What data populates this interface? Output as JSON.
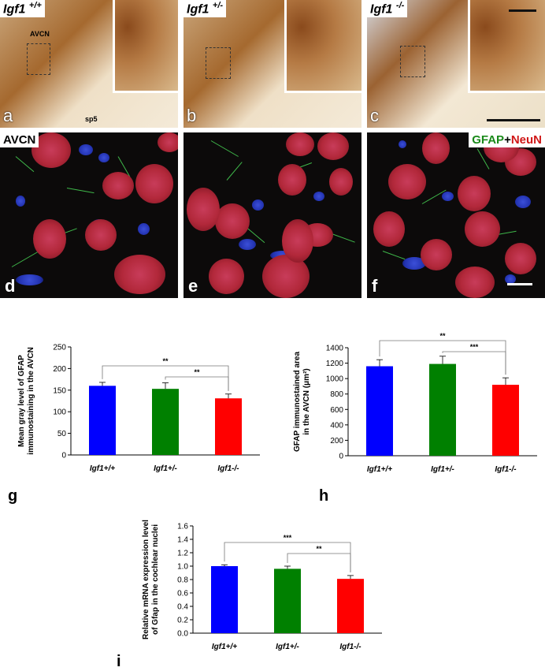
{
  "micrographs": {
    "top": [
      {
        "genotype": "Igf1",
        "superscript": "+/+",
        "letter": "a",
        "labels": [
          "AVCN",
          "sp5"
        ]
      },
      {
        "genotype": "Igf1",
        "superscript": "+/-",
        "letter": "b",
        "labels": []
      },
      {
        "genotype": "Igf1",
        "superscript": "-/-",
        "letter": "c",
        "labels": []
      }
    ],
    "bottom": [
      {
        "letter": "d",
        "label": "AVCN"
      },
      {
        "letter": "e",
        "label": ""
      },
      {
        "letter": "f",
        "stain_gfap": "GFAP",
        "stain_plus": "+",
        "stain_neun": "NeuN"
      }
    ]
  },
  "chart_data": [
    {
      "panel": "g",
      "type": "bar",
      "categories": [
        "Igf1+/+",
        "Igf1+/-",
        "Igf1-/-"
      ],
      "values": [
        160,
        153,
        131
      ],
      "errors": [
        8,
        14,
        10
      ],
      "colors": [
        "#0000ff",
        "#008000",
        "#ff0000"
      ],
      "ylabel": "Mean gray level of GFAP immunostaining in the AVCN",
      "ylabel_lines": [
        "Mean gray level of GFAP",
        "immunostaining in the AVCN"
      ],
      "ylim": [
        0,
        250
      ],
      "yticks": [
        "0",
        "50",
        "100",
        "150",
        "200",
        "250"
      ],
      "tick_values": [
        0,
        50,
        100,
        150,
        200,
        250
      ],
      "significance": [
        {
          "from": 0,
          "to": 2,
          "label": "**"
        },
        {
          "from": 1,
          "to": 2,
          "label": "**"
        }
      ]
    },
    {
      "panel": "h",
      "type": "bar",
      "categories": [
        "Igf1+/+",
        "Igf1+/-",
        "Igf1-/-"
      ],
      "values": [
        1160,
        1190,
        920
      ],
      "errors": [
        85,
        100,
        90
      ],
      "colors": [
        "#0000ff",
        "#008000",
        "#ff0000"
      ],
      "ylabel": "GFAP immunostained area in the AVCN (μm²)",
      "ylabel_lines": [
        "GFAP immunostained area",
        "in the AVCN (μm²)"
      ],
      "ylim": [
        0,
        1400
      ],
      "yticks": [
        "0",
        "200",
        "400",
        "600",
        "800",
        "1000",
        "1200",
        "1400"
      ],
      "tick_values": [
        0,
        200,
        400,
        600,
        800,
        1000,
        1200,
        1400
      ],
      "significance": [
        {
          "from": 0,
          "to": 2,
          "label": "**"
        },
        {
          "from": 1,
          "to": 2,
          "label": "***"
        }
      ]
    },
    {
      "panel": "i",
      "type": "bar",
      "categories": [
        "Igf1+/+",
        "Igf1+/-",
        "Igf1-/-"
      ],
      "values": [
        1.0,
        0.96,
        0.81
      ],
      "errors": [
        0.02,
        0.04,
        0.05
      ],
      "colors": [
        "#0000ff",
        "#008000",
        "#ff0000"
      ],
      "ylabel": "Relative mRNA expression level of Gfap in the cochlear nuclei",
      "ylabel_lines": [
        "Relative mRNA expression level",
        "of Gfap in the cochlear nuclei"
      ],
      "ylim": [
        0,
        1.6
      ],
      "yticks": [
        "0.0",
        "0.2",
        "0.4",
        "0.6",
        "0.8",
        "1.0",
        "1.2",
        "1.4",
        "1.6"
      ],
      "tick_values": [
        0,
        0.2,
        0.4,
        0.6,
        0.8,
        1.0,
        1.2,
        1.4,
        1.6
      ],
      "significance": [
        {
          "from": 0,
          "to": 2,
          "label": "***"
        },
        {
          "from": 1,
          "to": 2,
          "label": "**"
        }
      ]
    }
  ]
}
